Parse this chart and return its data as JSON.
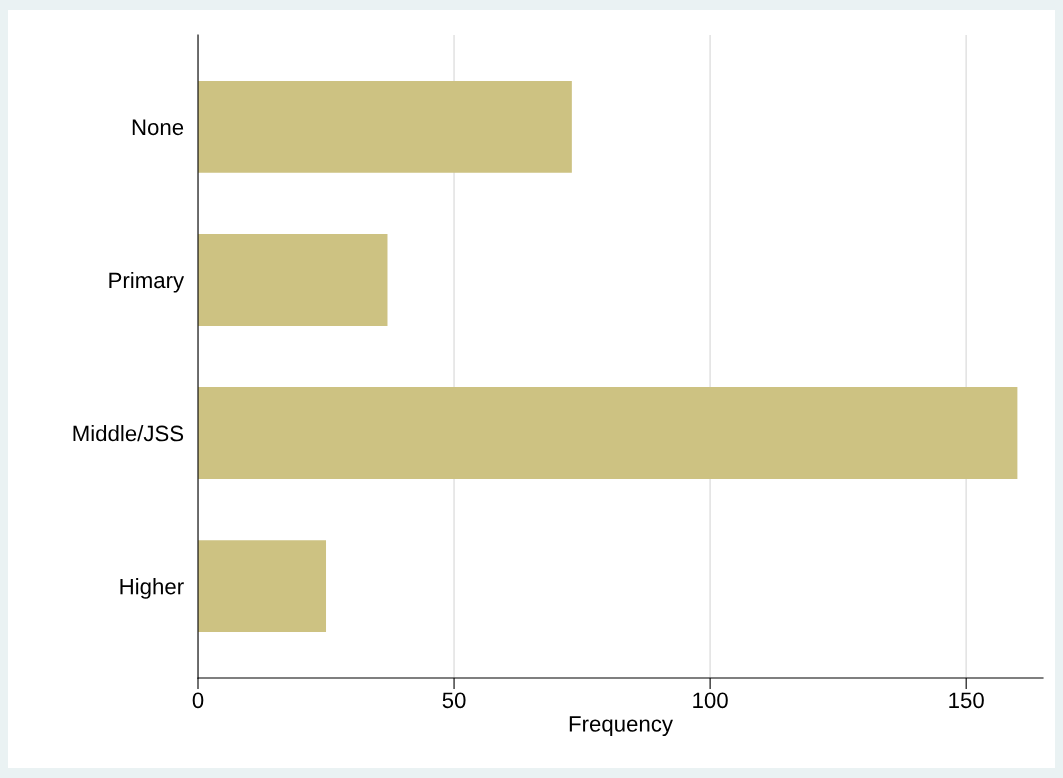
{
  "chart_data": {
    "type": "bar",
    "orientation": "horizontal",
    "xlabel": "Frequency",
    "categories": [
      "None",
      "Primary",
      "Middle/JSS",
      "Higher"
    ],
    "values": [
      73,
      37,
      160,
      25
    ],
    "color": "#cdc282",
    "xlim": [
      0,
      165
    ],
    "xticks": [
      0,
      50,
      100,
      150
    ],
    "grid": "x"
  }
}
